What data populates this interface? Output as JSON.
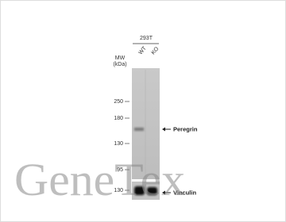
{
  "cell_line": "293T",
  "lanes": [
    "WT",
    "KO"
  ],
  "mw_label": [
    "MW",
    "(kDa)"
  ],
  "markers": [
    "250",
    "180",
    "130",
    "95",
    "130"
  ],
  "bands": [
    "Peregrin",
    "Vinculin"
  ],
  "watermark": "GeneTex"
}
